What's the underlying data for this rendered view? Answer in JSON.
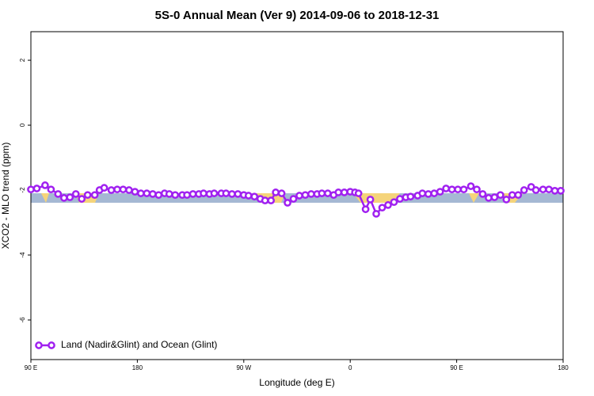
{
  "chart_data": {
    "type": "line",
    "title": "5S-0 Annual Mean (Ver 9)   2014-09-06 to 2018-12-31",
    "x_label": "Longitude (deg E)",
    "y_label": "XCO2 - MLO trend (ppm)",
    "xlim": [
      90,
      540
    ],
    "ylim": [
      -7.22,
      2.88
    ],
    "xticks": [
      {
        "value": 90,
        "label": "90 E"
      },
      180,
      {
        "value": 270,
        "label": "90 W"
      },
      {
        "value": 360,
        "label": "0"
      },
      {
        "value": 450,
        "label": "90 E"
      },
      {
        "value": 540,
        "label": "180"
      }
    ],
    "yticks": [
      -6,
      -4,
      -2,
      0,
      2
    ],
    "legend": "bottom-left",
    "x": [
      90,
      95,
      102,
      107,
      113,
      118,
      123,
      128,
      133,
      138,
      144,
      148,
      152,
      158,
      163,
      168,
      173,
      178,
      183,
      188,
      193,
      198,
      203,
      207,
      212,
      218,
      222,
      227,
      232,
      236,
      241,
      245,
      251,
      255,
      260,
      265,
      270,
      274,
      279,
      284,
      288,
      293,
      297,
      302,
      307,
      312,
      317,
      322,
      327,
      332,
      336,
      341,
      346,
      350,
      355,
      360,
      364,
      367,
      373,
      377,
      382,
      387,
      392,
      397,
      402,
      407,
      411,
      417,
      421,
      426,
      431,
      436,
      441,
      446,
      451,
      456,
      462,
      467,
      472,
      477,
      482,
      487,
      492,
      497,
      502,
      507,
      513,
      517,
      523,
      528,
      533,
      538
    ],
    "series": [
      {
        "name": "Land (Nadir&Glint) and Ocean (Glint)",
        "color": "#a020f0",
        "values": [
          -1.98,
          -1.95,
          -1.85,
          -1.98,
          -2.12,
          -2.24,
          -2.22,
          -2.12,
          -2.27,
          -2.15,
          -2.15,
          -2.0,
          -1.93,
          -2.0,
          -1.98,
          -1.98,
          -2.0,
          -2.05,
          -2.1,
          -2.1,
          -2.12,
          -2.15,
          -2.1,
          -2.12,
          -2.15,
          -2.15,
          -2.15,
          -2.12,
          -2.12,
          -2.1,
          -2.12,
          -2.1,
          -2.1,
          -2.1,
          -2.12,
          -2.12,
          -2.15,
          -2.17,
          -2.2,
          -2.27,
          -2.32,
          -2.32,
          -2.07,
          -2.1,
          -2.39,
          -2.27,
          -2.17,
          -2.15,
          -2.12,
          -2.12,
          -2.1,
          -2.1,
          -2.15,
          -2.07,
          -2.07,
          -2.05,
          -2.07,
          -2.1,
          -2.59,
          -2.29,
          -2.73,
          -2.54,
          -2.46,
          -2.37,
          -2.27,
          -2.22,
          -2.2,
          -2.17,
          -2.1,
          -2.12,
          -2.1,
          -2.05,
          -1.95,
          -1.98,
          -1.98,
          -1.98,
          -1.88,
          -1.98,
          -2.12,
          -2.24,
          -2.22,
          -2.15,
          -2.29,
          -2.15,
          -2.15,
          -2.0,
          -1.9,
          -2.0,
          -1.98,
          -1.98,
          -2.02,
          -2.02
        ]
      }
    ]
  }
}
